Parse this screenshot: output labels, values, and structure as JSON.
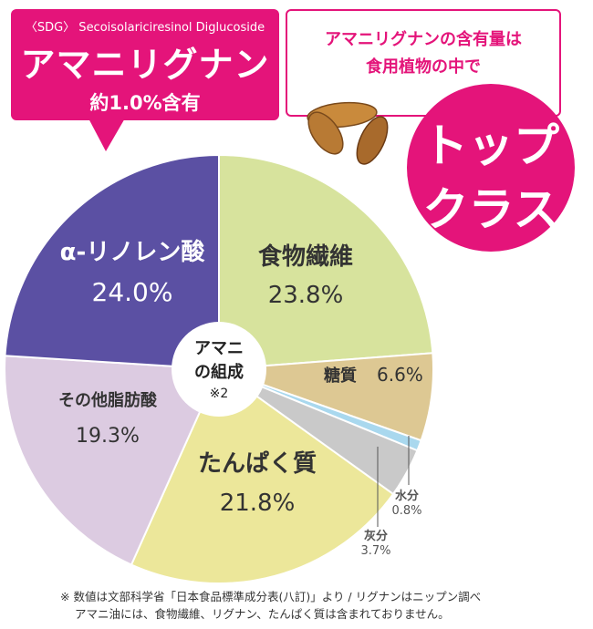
{
  "callout": {
    "subtitle": "〈SDG〉 Secoisolariciresinol Diglucoside",
    "title": "アマニリグナン",
    "content": "約1.0%含有"
  },
  "headline": {
    "line1": "アマニリグナンの含有量は",
    "line2": "食用植物の中で",
    "badge_line1": "トップ",
    "badge_line2": "クラス"
  },
  "chart_data": {
    "type": "pie",
    "center_label": [
      "アマニ",
      "の組成",
      "※2"
    ],
    "slices": [
      {
        "label": "食物繊維",
        "value": 23.8,
        "value_text": "23.8%",
        "color": "#d7e39d"
      },
      {
        "label": "糖質",
        "value": 6.6,
        "value_text": "6.6%",
        "color": "#ddc893"
      },
      {
        "label": "水分",
        "value": 0.8,
        "value_text": "0.8%",
        "color": "#a9d8ee"
      },
      {
        "label": "灰分",
        "value": 3.7,
        "value_text": "3.7%",
        "color": "#c9c9c9"
      },
      {
        "label": "たんぱく質",
        "value": 21.8,
        "value_text": "21.8%",
        "color": "#ece79a"
      },
      {
        "label": "その他脂肪酸",
        "value": 19.3,
        "value_text": "19.3%",
        "color": "#dccbe1"
      },
      {
        "label": "α-リノレン酸",
        "value": 24.0,
        "value_text": "24.0%",
        "color": "#5b50a3"
      }
    ]
  },
  "footnote": {
    "line1": "※ 数値は文部科学省「日本食品標準成分表(八訂)」より / リグナンはニップン調べ",
    "line2": "アマニ油には、食物繊維、リグナン、たんぱく質は含まれておりません。"
  }
}
